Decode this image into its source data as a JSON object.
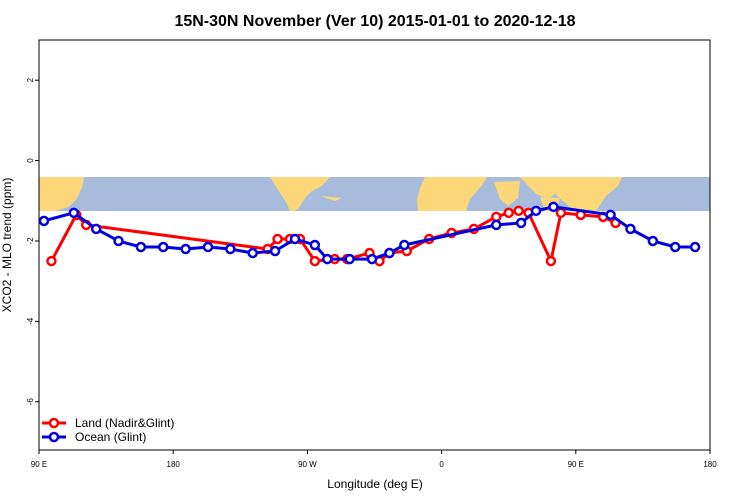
{
  "chart_data": {
    "type": "line",
    "title": "15N-30N November (Ver 10)   2015-01-01 to 2020-12-18",
    "xlabel": "Longitude (deg E)",
    "ylabel": "XCO2 - MLO trend (ppm)",
    "xlim": [
      -90,
      180
    ],
    "ylim": [
      -7.2,
      3.0
    ],
    "x_ticks": [
      {
        "value": -90,
        "label": "90 E"
      },
      {
        "value": -36,
        "label": "180"
      },
      {
        "value": 18,
        "label": "90 W"
      },
      {
        "value": 72,
        "label": "0"
      },
      {
        "value": 126,
        "label": "90 E"
      },
      {
        "value": 180,
        "label": "180"
      }
    ],
    "y_ticks": [
      {
        "value": 2,
        "label": "2"
      },
      {
        "value": 0,
        "label": "0"
      },
      {
        "value": -2,
        "label": "-2"
      },
      {
        "value": -4,
        "label": "-4"
      },
      {
        "value": -6,
        "label": "-6"
      }
    ],
    "map_band": {
      "y_top": -0.4,
      "y_bottom": -1.2,
      "ocean_color": "#a7bcdc",
      "land_color": "#fbd77a"
    },
    "series": [
      {
        "name": "Land (Nadir&Glint)",
        "color": "#ff0000",
        "x": [
          -85,
          -75,
          -71,
          2,
          6,
          11,
          15,
          21,
          29,
          34,
          43,
          47,
          51,
          58,
          67,
          76,
          85,
          94,
          99,
          103,
          107,
          116,
          120,
          128,
          137,
          142
        ],
        "y": [
          -2.5,
          -1.35,
          -1.6,
          -2.2,
          -1.95,
          -1.95,
          -1.95,
          -2.5,
          -2.45,
          -2.45,
          -2.3,
          -2.5,
          -2.3,
          -2.25,
          -1.95,
          -1.8,
          -1.7,
          -1.4,
          -1.3,
          -1.25,
          -1.3,
          -2.5,
          -1.3,
          -1.35,
          -1.4,
          -1.55
        ]
      },
      {
        "name": "Ocean (Glint)",
        "color": "#0000e0",
        "x": [
          -88,
          -76,
          -67,
          -58,
          -49,
          -40,
          -31,
          -22,
          -13,
          -4,
          5,
          13,
          21,
          26,
          35,
          44,
          51,
          57,
          94,
          104,
          110,
          117,
          140,
          148,
          157,
          166,
          174
        ],
        "y": [
          -1.5,
          -1.3,
          -1.7,
          -2.0,
          -2.15,
          -2.15,
          -2.2,
          -2.15,
          -2.2,
          -2.3,
          -2.25,
          -1.95,
          -2.1,
          -2.45,
          -2.45,
          -2.45,
          -2.3,
          -2.1,
          -1.6,
          -1.55,
          -1.25,
          -1.15,
          -1.35,
          -1.7,
          -2.0,
          -2.15,
          -2.15
        ]
      }
    ]
  }
}
